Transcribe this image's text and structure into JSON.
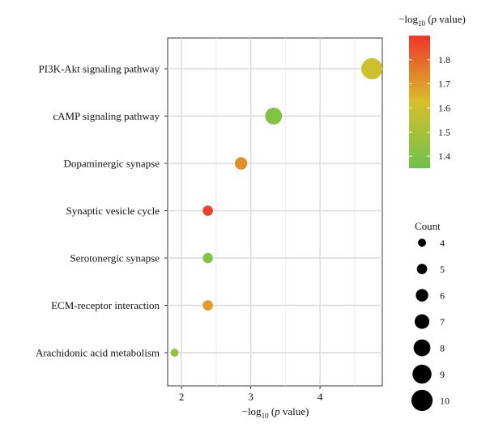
{
  "chart_data": {
    "type": "scatter",
    "xlabel_parts": [
      "−log",
      "10",
      " (",
      "p",
      " value)"
    ],
    "x_ticks": [
      2,
      3,
      4
    ],
    "xlim": [
      1.8,
      4.9
    ],
    "grid": true,
    "categories": [
      "PI3K-Akt signaling pathway",
      "cAMP signaling pathway",
      "Dopaminergic synapse",
      "Synaptic vesicle cycle",
      "Serotonergic synapse",
      "ECM-receptor interaction",
      "Arachidonic acid metabolism"
    ],
    "points": [
      {
        "category": "PI3K-Akt signaling pathway",
        "x": 4.75,
        "count": 10,
        "color_value": 1.6
      },
      {
        "category": "cAMP signaling pathway",
        "x": 3.33,
        "count": 8,
        "color_value": 1.4
      },
      {
        "category": "Dopaminergic synapse",
        "x": 2.86,
        "count": 6,
        "color_value": 1.72
      },
      {
        "category": "Synaptic vesicle cycle",
        "x": 2.38,
        "count": 5,
        "color_value": 1.87
      },
      {
        "category": "Serotonergic synapse",
        "x": 2.38,
        "count": 5,
        "color_value": 1.42
      },
      {
        "category": "ECM-receptor interaction",
        "x": 2.38,
        "count": 5,
        "color_value": 1.7
      },
      {
        "category": "Arachidonic acid metabolism",
        "x": 1.9,
        "count": 4,
        "color_value": 1.46
      }
    ],
    "color_legend": {
      "title_parts": [
        "−log",
        "10",
        " (",
        "p",
        " value)"
      ],
      "ticks": [
        1.4,
        1.5,
        1.6,
        1.7,
        1.8
      ],
      "range": [
        1.35,
        1.9
      ],
      "low_color": "#6cc24a",
      "mid_color": "#d8c02a",
      "high_color": "#f0342a"
    },
    "size_legend": {
      "title": "Count",
      "values": [
        4,
        5,
        6,
        7,
        8,
        9,
        10
      ]
    }
  }
}
